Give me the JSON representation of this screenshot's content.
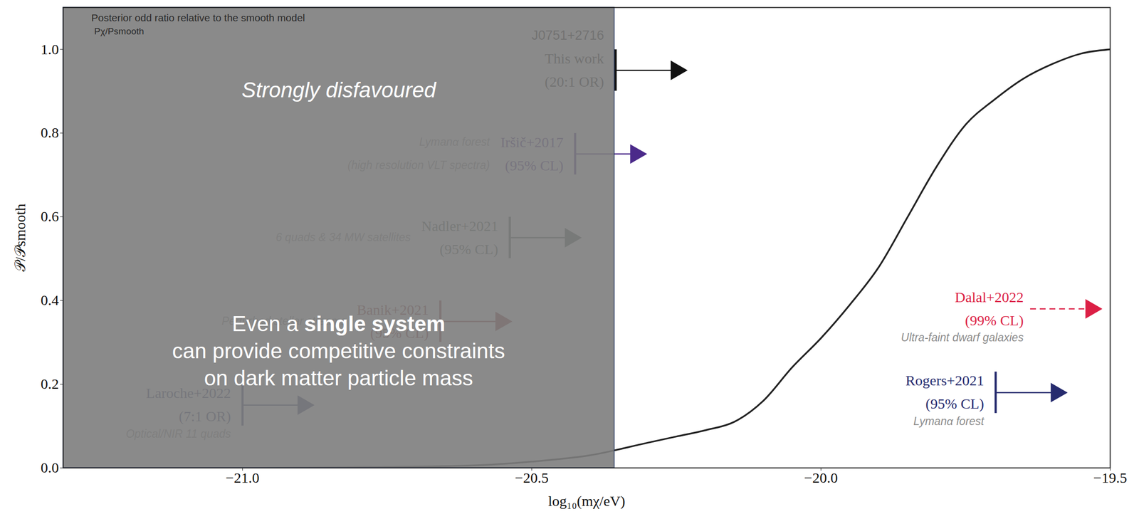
{
  "chart_data": {
    "type": "line",
    "annotation": "Posterior odd ratio relative to the smooth model",
    "annotation_ratio": "Pχ/Psmooth",
    "x_label": "log₁₀(mχ/eV)",
    "y_label": "𝒫/𝒫smooth",
    "xlim": [
      -21.31,
      -19.5
    ],
    "ylim": [
      0,
      1.1
    ],
    "xticks": [
      {
        "value": -21,
        "label": "−21.0"
      },
      {
        "value": -20.5,
        "label": "−20.5"
      },
      {
        "value": -20,
        "label": "−20.0"
      },
      {
        "value": -19.5,
        "label": "−19.5"
      }
    ],
    "yticks": [
      {
        "value": 0,
        "label": "0.0"
      },
      {
        "value": 0.2,
        "label": "0.2"
      },
      {
        "value": 0.4,
        "label": "0.4"
      },
      {
        "value": 0.6,
        "label": "0.6"
      },
      {
        "value": 0.8,
        "label": "0.8"
      },
      {
        "value": 1,
        "label": "1.0"
      }
    ],
    "grid": false,
    "color": "#222222",
    "x": [
      -21.31,
      -21.0,
      -20.75,
      -20.6,
      -20.5,
      -20.4,
      -20.3,
      -20.25,
      -20.2,
      -20.15,
      -20.1,
      -20.05,
      -20.0,
      -19.95,
      -19.9,
      -19.85,
      -19.8,
      -19.75,
      -19.7,
      -19.65,
      -19.6,
      -19.55,
      -19.5
    ],
    "values": [
      0,
      0,
      0.002,
      0.006,
      0.015,
      0.03,
      0.06,
      0.075,
      0.09,
      0.11,
      0.16,
      0.24,
      0.31,
      0.39,
      0.48,
      0.6,
      0.72,
      0.82,
      0.88,
      0.93,
      0.965,
      0.99,
      1.0
    ],
    "disfavoured_region": {
      "x": [
        -21.31,
        -20.357
      ],
      "label": "Strongly disfavoured"
    },
    "message": {
      "lines": [
        "Even a single system",
        "can provide competitive constraints",
        "on dark matter particle mass"
      ],
      "bold": "single system"
    },
    "constraints": [
      {
        "system": "J0751+2716",
        "name": "This work",
        "note": "(20:1 OR)",
        "x": -20.355,
        "y": 0.95,
        "color": "#111111",
        "marker": "bar",
        "line_style": "solid"
      },
      {
        "name": "Iršič+2017",
        "note": "(95% CL)",
        "description": [
          "Lymanα forest",
          "(high resolution VLT spectra)"
        ],
        "x": -20.425,
        "y": 0.75,
        "color": "#4b2a8a",
        "marker": "bar",
        "line_style": "solid"
      },
      {
        "name": "Nadler+2021",
        "note": "(95% CL)",
        "description": [
          "6 quads & 34 MW satellites"
        ],
        "x": -20.538,
        "y": 0.55,
        "color": "#4a5a52",
        "marker": "bar",
        "line_style": "solid"
      },
      {
        "name": "Banik+2021",
        "note": "(95% CL)",
        "description": [
          "Perturbed stellar streams"
        ],
        "x": -20.658,
        "y": 0.35,
        "color": "#8a3b3b",
        "marker": "bar",
        "line_style": "solid"
      },
      {
        "name": "Laroche+2022",
        "note": "(7:1 OR)",
        "description": [
          "Optical/NIR 11 quads"
        ],
        "x": -21.0,
        "y": 0.15,
        "color": "#3b3f72",
        "marker": "bar",
        "line_style": "solid"
      },
      {
        "name": "Dalal+2022",
        "note": "(99% CL)",
        "description": [
          "Ultra-faint dwarf galaxies"
        ],
        "x": -19.638,
        "y": 0.38,
        "color": "#dc1f45",
        "marker": "none",
        "line_style": "dashed"
      },
      {
        "name": "Rogers+2021",
        "note": "(95% CL)",
        "description": [
          "Lymanα forest"
        ],
        "x": -19.698,
        "y": 0.18,
        "color": "#262b6e",
        "marker": "bar",
        "line_style": "solid"
      }
    ]
  }
}
